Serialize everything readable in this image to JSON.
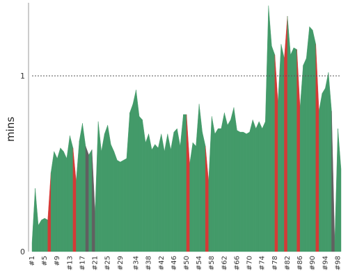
{
  "chart_data": {
    "type": "area",
    "ylabel": "mins",
    "ylim": [
      0,
      1.4
    ],
    "y_ticks": [
      0,
      1
    ],
    "reference_line": {
      "y": 1,
      "style": "dashed"
    },
    "grid": false,
    "legend": "none",
    "colors": {
      "success": "#439a69",
      "failed": "#d43a36",
      "aborted": "#606060"
    },
    "x_tick_labels": [
      "#1",
      "#5",
      "#9",
      "#13",
      "#17",
      "#21",
      "#25",
      "#29",
      "#34",
      "#38",
      "#42",
      "#46",
      "#50",
      "#54",
      "#58",
      "#62",
      "#66",
      "#70",
      "#74",
      "#78",
      "#82",
      "#86",
      "#90",
      "#94",
      "#98"
    ],
    "builds": [
      {
        "b": 1,
        "v": 0.05,
        "s": "success"
      },
      {
        "b": 2,
        "v": 0.36,
        "s": "success"
      },
      {
        "b": 3,
        "v": 0.15,
        "s": "success"
      },
      {
        "b": 4,
        "v": 0.18,
        "s": "success"
      },
      {
        "b": 5,
        "v": 0.19,
        "s": "success"
      },
      {
        "b": 6,
        "v": 0.18,
        "s": "success"
      },
      {
        "b": 7,
        "v": 0.45,
        "s": "failed"
      },
      {
        "b": 8,
        "v": 0.57,
        "s": "success"
      },
      {
        "b": 9,
        "v": 0.53,
        "s": "success"
      },
      {
        "b": 10,
        "v": 0.59,
        "s": "success"
      },
      {
        "b": 11,
        "v": 0.57,
        "s": "success"
      },
      {
        "b": 12,
        "v": 0.53,
        "s": "success"
      },
      {
        "b": 13,
        "v": 0.66,
        "s": "success"
      },
      {
        "b": 14,
        "v": 0.59,
        "s": "success"
      },
      {
        "b": 15,
        "v": 0.4,
        "s": "failed"
      },
      {
        "b": 16,
        "v": 0.63,
        "s": "success"
      },
      {
        "b": 17,
        "v": 0.73,
        "s": "success"
      },
      {
        "b": 18,
        "v": 0.6,
        "s": "success"
      },
      {
        "b": 19,
        "v": 0.55,
        "s": "aborted"
      },
      {
        "b": 20,
        "v": 0.58,
        "s": "success"
      },
      {
        "b": 21,
        "v": 0.22,
        "s": "aborted"
      },
      {
        "b": 22,
        "v": 0.74,
        "s": "success"
      },
      {
        "b": 23,
        "v": 0.57,
        "s": "success"
      },
      {
        "b": 24,
        "v": 0.67,
        "s": "success"
      },
      {
        "b": 25,
        "v": 0.72,
        "s": "success"
      },
      {
        "b": 26,
        "v": 0.61,
        "s": "success"
      },
      {
        "b": 27,
        "v": 0.57,
        "s": "success"
      },
      {
        "b": 28,
        "v": 0.52,
        "s": "success"
      },
      {
        "b": 29,
        "v": 0.51,
        "s": "success"
      },
      {
        "b": 30,
        "v": 0.52,
        "s": "success"
      },
      {
        "b": 31,
        "v": 0.53,
        "s": "success"
      },
      {
        "b": 32,
        "v": 0.79,
        "s": "success"
      },
      {
        "b": 33,
        "v": 0.84,
        "s": "success"
      },
      {
        "b": 34,
        "v": 0.92,
        "s": "success"
      },
      {
        "b": 35,
        "v": 0.77,
        "s": "success"
      },
      {
        "b": 36,
        "v": 0.75,
        "s": "success"
      },
      {
        "b": 37,
        "v": 0.62,
        "s": "success"
      },
      {
        "b": 38,
        "v": 0.67,
        "s": "success"
      },
      {
        "b": 39,
        "v": 0.58,
        "s": "success"
      },
      {
        "b": 40,
        "v": 0.61,
        "s": "success"
      },
      {
        "b": 41,
        "v": 0.59,
        "s": "success"
      },
      {
        "b": 42,
        "v": 0.67,
        "s": "success"
      },
      {
        "b": 43,
        "v": 0.57,
        "s": "success"
      },
      {
        "b": 44,
        "v": 0.67,
        "s": "success"
      },
      {
        "b": 45,
        "v": 0.58,
        "s": "success"
      },
      {
        "b": 46,
        "v": 0.68,
        "s": "success"
      },
      {
        "b": 47,
        "v": 0.7,
        "s": "success"
      },
      {
        "b": 48,
        "v": 0.6,
        "s": "success"
      },
      {
        "b": 49,
        "v": 0.78,
        "s": "success"
      },
      {
        "b": 50,
        "v": 0.78,
        "s": "success"
      },
      {
        "b": 51,
        "v": 0.5,
        "s": "failed"
      },
      {
        "b": 52,
        "v": 0.62,
        "s": "success"
      },
      {
        "b": 53,
        "v": 0.6,
        "s": "success"
      },
      {
        "b": 54,
        "v": 0.84,
        "s": "success"
      },
      {
        "b": 55,
        "v": 0.68,
        "s": "success"
      },
      {
        "b": 56,
        "v": 0.6,
        "s": "success"
      },
      {
        "b": 57,
        "v": 0.4,
        "s": "failed"
      },
      {
        "b": 58,
        "v": 0.77,
        "s": "success"
      },
      {
        "b": 59,
        "v": 0.67,
        "s": "success"
      },
      {
        "b": 60,
        "v": 0.7,
        "s": "success"
      },
      {
        "b": 61,
        "v": 0.7,
        "s": "success"
      },
      {
        "b": 62,
        "v": 0.79,
        "s": "success"
      },
      {
        "b": 63,
        "v": 0.72,
        "s": "success"
      },
      {
        "b": 64,
        "v": 0.75,
        "s": "success"
      },
      {
        "b": 65,
        "v": 0.82,
        "s": "success"
      },
      {
        "b": 66,
        "v": 0.69,
        "s": "success"
      },
      {
        "b": 67,
        "v": 0.68,
        "s": "success"
      },
      {
        "b": 68,
        "v": 0.68,
        "s": "success"
      },
      {
        "b": 69,
        "v": 0.67,
        "s": "success"
      },
      {
        "b": 70,
        "v": 0.68,
        "s": "success"
      },
      {
        "b": 71,
        "v": 0.75,
        "s": "success"
      },
      {
        "b": 72,
        "v": 0.7,
        "s": "success"
      },
      {
        "b": 73,
        "v": 0.74,
        "s": "success"
      },
      {
        "b": 74,
        "v": 0.7,
        "s": "success"
      },
      {
        "b": 75,
        "v": 0.74,
        "s": "success"
      },
      {
        "b": 76,
        "v": 1.4,
        "s": "success"
      },
      {
        "b": 77,
        "v": 1.17,
        "s": "success"
      },
      {
        "b": 78,
        "v": 1.12,
        "s": "success"
      },
      {
        "b": 79,
        "v": 0.85,
        "s": "failed"
      },
      {
        "b": 80,
        "v": 1.18,
        "s": "success"
      },
      {
        "b": 81,
        "v": 1.1,
        "s": "success"
      },
      {
        "b": 82,
        "v": 1.34,
        "s": "failed"
      },
      {
        "b": 83,
        "v": 1.12,
        "s": "success"
      },
      {
        "b": 84,
        "v": 1.16,
        "s": "success"
      },
      {
        "b": 85,
        "v": 1.15,
        "s": "success"
      },
      {
        "b": 86,
        "v": 0.82,
        "s": "failed"
      },
      {
        "b": 87,
        "v": 1.06,
        "s": "success"
      },
      {
        "b": 88,
        "v": 1.1,
        "s": "success"
      },
      {
        "b": 89,
        "v": 1.28,
        "s": "success"
      },
      {
        "b": 90,
        "v": 1.26,
        "s": "success"
      },
      {
        "b": 91,
        "v": 1.18,
        "s": "success"
      },
      {
        "b": 92,
        "v": 0.8,
        "s": "failed"
      },
      {
        "b": 93,
        "v": 0.9,
        "s": "success"
      },
      {
        "b": 94,
        "v": 0.93,
        "s": "success"
      },
      {
        "b": 95,
        "v": 1.02,
        "s": "success"
      },
      {
        "b": 96,
        "v": 0.8,
        "s": "success"
      },
      {
        "b": 97,
        "v": 0.05,
        "s": "aborted"
      },
      {
        "b": 98,
        "v": 0.7,
        "s": "success"
      },
      {
        "b": 99,
        "v": 0.47,
        "s": "success"
      }
    ]
  }
}
